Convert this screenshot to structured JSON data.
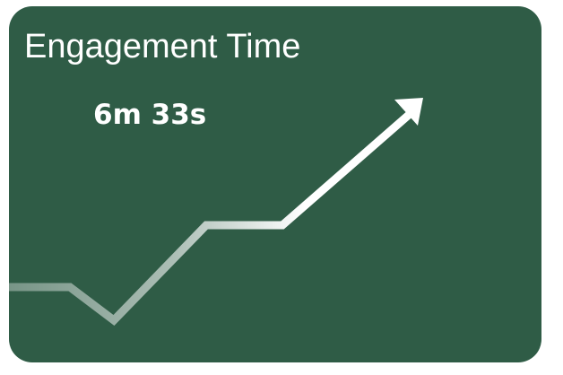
{
  "card": {
    "title": "Engagement Time",
    "value": "6m 33s",
    "background_color": "#2f5c46",
    "text_color": "#ffffff"
  },
  "trend_icon": {
    "icon": "trend-up-arrow-icon",
    "direction": "up",
    "line_color": "#ffffff"
  }
}
